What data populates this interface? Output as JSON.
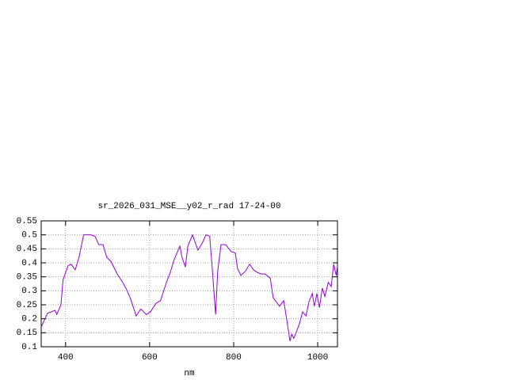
{
  "chart_data": {
    "type": "line",
    "title": "sr_2026_031_MSE__y02_r_rad 17-24-00",
    "x_label": "nm",
    "x": [
      342,
      357,
      375,
      379,
      389,
      394,
      406,
      413,
      423,
      432,
      443,
      460,
      470,
      479,
      489,
      498,
      508,
      523,
      536,
      545,
      555,
      568,
      579,
      592,
      602,
      615,
      626,
      640,
      649,
      658,
      672,
      677,
      685,
      691,
      702,
      715,
      725,
      734,
      743,
      749,
      757,
      762,
      770,
      781,
      794,
      804,
      809,
      817,
      828,
      838,
      847,
      857,
      866,
      875,
      887,
      894,
      904,
      909,
      919,
      926,
      934,
      938,
      943,
      951,
      957,
      964,
      972,
      979,
      987,
      992,
      998,
      1004,
      1011,
      1017,
      1025,
      1032,
      1038,
      1044,
      1047
    ],
    "series": [
      {
        "color": "#9400d3",
        "values": [
          0.17,
          0.22,
          0.23,
          0.215,
          0.25,
          0.34,
          0.39,
          0.395,
          0.375,
          0.42,
          0.5,
          0.5,
          0.495,
          0.465,
          0.465,
          0.42,
          0.405,
          0.36,
          0.33,
          0.305,
          0.27,
          0.21,
          0.235,
          0.215,
          0.225,
          0.255,
          0.265,
          0.33,
          0.365,
          0.41,
          0.46,
          0.42,
          0.385,
          0.46,
          0.5,
          0.445,
          0.47,
          0.5,
          0.495,
          0.38,
          0.215,
          0.37,
          0.465,
          0.465,
          0.44,
          0.435,
          0.38,
          0.355,
          0.37,
          0.395,
          0.375,
          0.365,
          0.36,
          0.36,
          0.345,
          0.275,
          0.255,
          0.245,
          0.265,
          0.2,
          0.12,
          0.145,
          0.13,
          0.16,
          0.185,
          0.225,
          0.21,
          0.26,
          0.29,
          0.245,
          0.29,
          0.24,
          0.31,
          0.28,
          0.33,
          0.315,
          0.395,
          0.355,
          0.39
        ]
      }
    ],
    "xlim": [
      342,
      1047
    ],
    "xticks": [
      400,
      600,
      800,
      1000
    ],
    "ylim": [
      0.1,
      0.55
    ],
    "yticks": [
      0.1,
      0.15,
      0.2,
      0.25,
      0.3,
      0.35,
      0.4,
      0.45,
      0.5,
      0.55
    ],
    "grid": true
  }
}
